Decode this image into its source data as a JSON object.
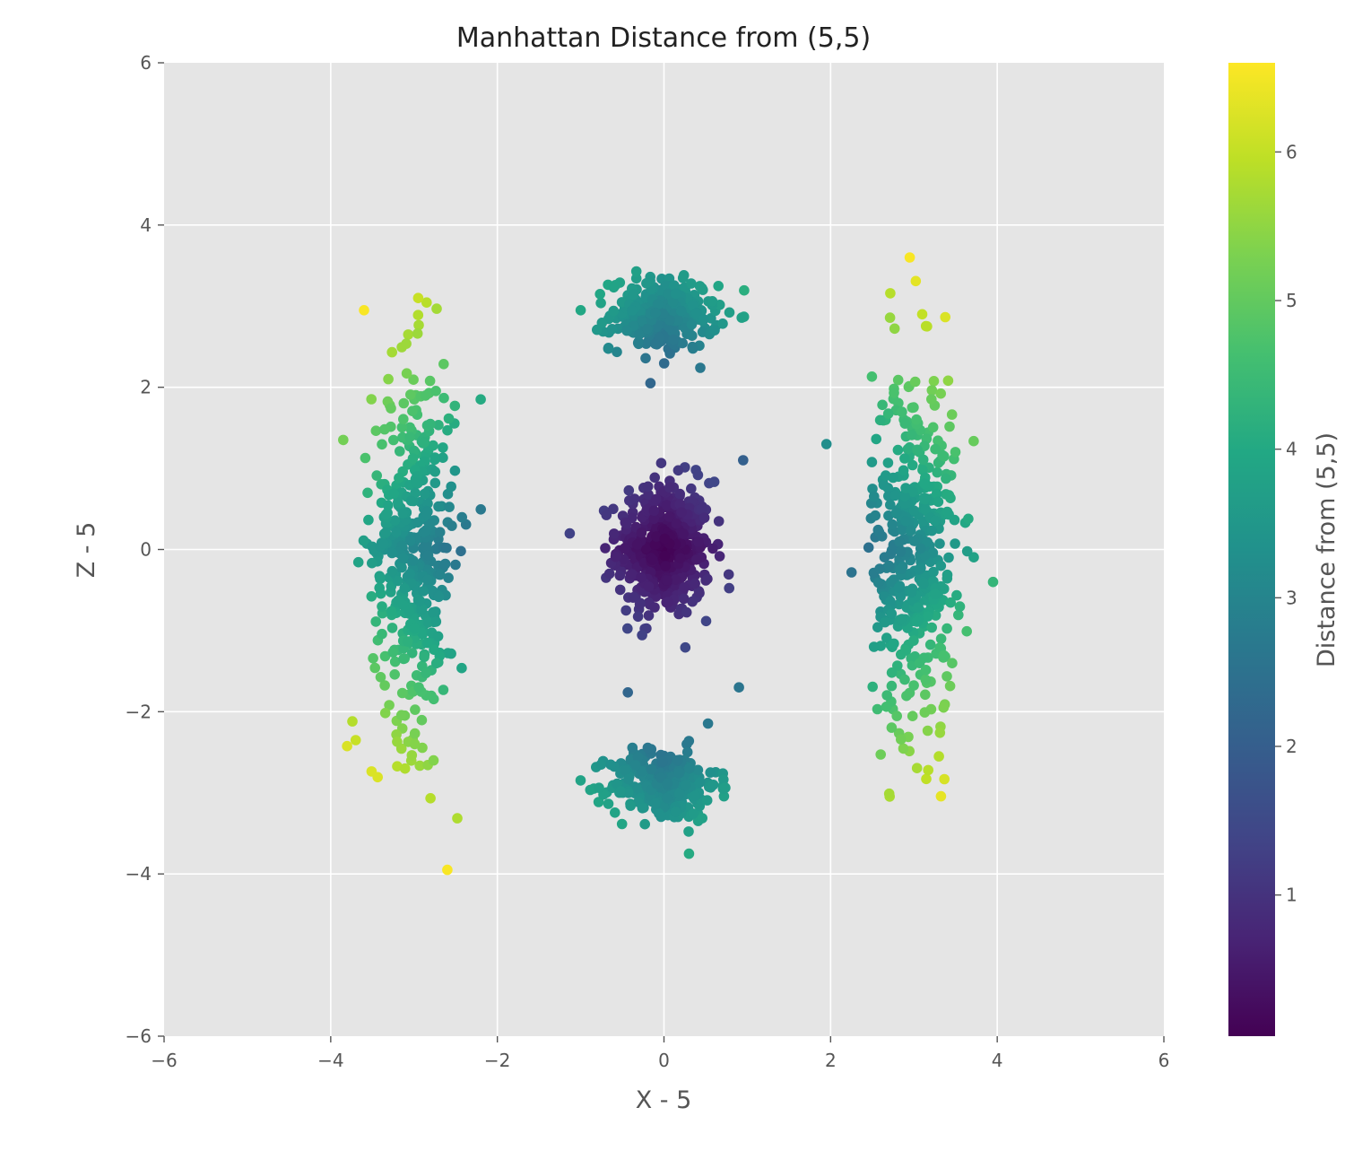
{
  "chart_data": {
    "type": "scatter",
    "title": "Manhattan Distance from (5,5)",
    "xlabel": "X - 5",
    "ylabel": "Z - 5",
    "xlim": [
      -6,
      6
    ],
    "ylim": [
      -6,
      6
    ],
    "x_ticks": [
      -6,
      -4,
      -2,
      0,
      2,
      4,
      6
    ],
    "y_ticks": [
      -6,
      -4,
      -2,
      0,
      2,
      4,
      6
    ],
    "grid": true,
    "background": "#e5e5e5",
    "grid_color": "#ffffff",
    "colormap": "viridis",
    "colorbar": {
      "label": "Distance from (5,5)",
      "range": [
        0.05,
        6.6
      ],
      "ticks": [
        1,
        2,
        3,
        4,
        5,
        6
      ]
    },
    "clusters": [
      {
        "center": [
          0,
          0
        ],
        "spread": [
          0.28,
          0.42
        ],
        "count": 480
      },
      {
        "center": [
          0,
          2.9
        ],
        "spread": [
          0.32,
          0.22
        ],
        "count": 300
      },
      {
        "center": [
          0,
          -2.9
        ],
        "spread": [
          0.32,
          0.22
        ],
        "count": 300
      },
      {
        "center": [
          -3,
          0
        ],
        "spread": [
          0.25,
          1.15
        ],
        "count": 430
      },
      {
        "center": [
          3,
          0
        ],
        "spread": [
          0.25,
          1.15
        ],
        "count": 430
      }
    ],
    "outliers": [
      {
        "x": -3.6,
        "y": 2.95,
        "value": 6.55
      },
      {
        "x": -2.6,
        "y": -3.95,
        "value": 6.55
      },
      {
        "x": 2.95,
        "y": 3.6,
        "value": 6.55
      },
      {
        "x": -2.95,
        "y": 3.1,
        "value": 6.05
      },
      {
        "x": 3.1,
        "y": 2.9,
        "value": 6.0
      },
      {
        "x": 1.95,
        "y": 1.3,
        "value": 3.25
      },
      {
        "x": -3.85,
        "y": 1.35,
        "value": 5.2
      },
      {
        "x": 3.95,
        "y": -0.4,
        "value": 4.35
      },
      {
        "x": 0.3,
        "y": -3.75,
        "value": 4.05
      },
      {
        "x": 0.95,
        "y": 1.1,
        "value": 2.05
      },
      {
        "x": -2.2,
        "y": 1.85,
        "value": 4.05
      },
      {
        "x": -1.0,
        "y": 2.95,
        "value": 3.95
      },
      {
        "x": 0.9,
        "y": -1.7,
        "value": 2.6
      },
      {
        "x": 3.3,
        "y": -2.55,
        "value": 5.85
      },
      {
        "x": -3.7,
        "y": -2.35,
        "value": 6.05
      }
    ],
    "seed": 12345
  }
}
